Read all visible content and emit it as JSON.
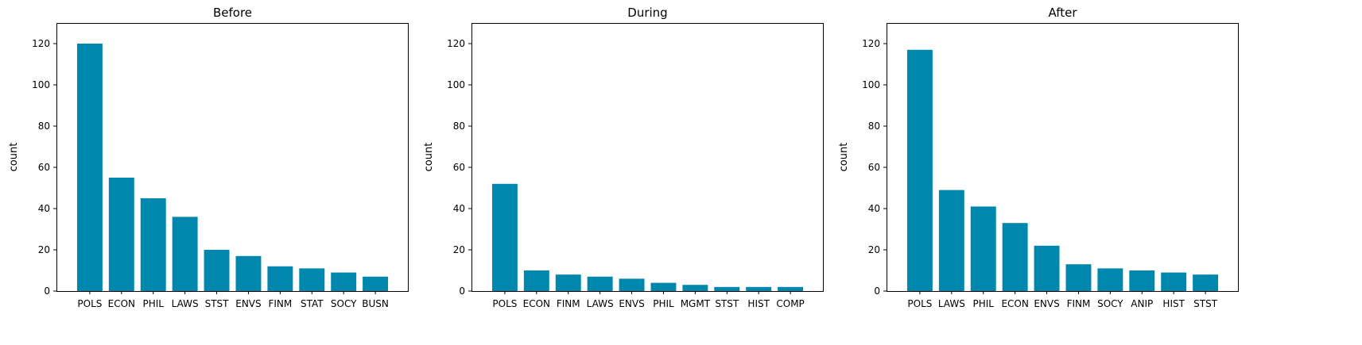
{
  "chart_data": [
    {
      "type": "bar",
      "title": "Before",
      "xlabel": "",
      "ylabel": "count",
      "ylim": [
        0,
        130
      ],
      "yticks": [
        0,
        20,
        40,
        60,
        80,
        100,
        120
      ],
      "bar_color": "#0087ae",
      "grid": false,
      "categories": [
        "POLS",
        "ECON",
        "PHIL",
        "LAWS",
        "STST",
        "ENVS",
        "FINM",
        "STAT",
        "SOCY",
        "BUSN"
      ],
      "values": [
        120,
        55,
        45,
        36,
        20,
        17,
        12,
        11,
        9,
        7
      ]
    },
    {
      "type": "bar",
      "title": "During",
      "xlabel": "",
      "ylabel": "count",
      "ylim": [
        0,
        130
      ],
      "yticks": [
        0,
        20,
        40,
        60,
        80,
        100,
        120
      ],
      "bar_color": "#0087ae",
      "grid": false,
      "categories": [
        "POLS",
        "ECON",
        "FINM",
        "LAWS",
        "ENVS",
        "PHIL",
        "MGMT",
        "STST",
        "HIST",
        "COMP"
      ],
      "values": [
        52,
        10,
        8,
        7,
        6,
        4,
        3,
        2,
        2,
        2
      ]
    },
    {
      "type": "bar",
      "title": "After",
      "xlabel": "",
      "ylabel": "count",
      "ylim": [
        0,
        130
      ],
      "yticks": [
        0,
        20,
        40,
        60,
        80,
        100,
        120
      ],
      "bar_color": "#0087ae",
      "grid": false,
      "categories": [
        "POLS",
        "LAWS",
        "PHIL",
        "ECON",
        "ENVS",
        "FINM",
        "SOCY",
        "ANIP",
        "HIST",
        "STST"
      ],
      "values": [
        117,
        49,
        41,
        33,
        22,
        13,
        11,
        10,
        9,
        8
      ]
    }
  ]
}
